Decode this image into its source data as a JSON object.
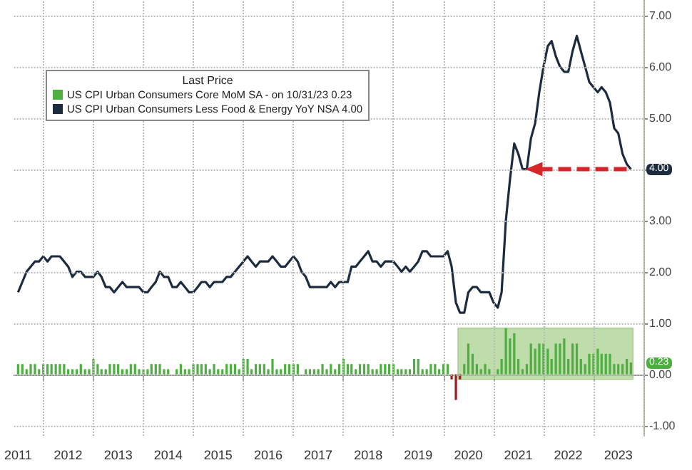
{
  "chart_data": {
    "type": "line",
    "legend_title": "Last Price",
    "legend": "top left",
    "grid": true,
    "x": [
      "2011-07",
      "2011-08",
      "2011-09",
      "2011-10",
      "2011-11",
      "2011-12",
      "2012-01",
      "2012-02",
      "2012-03",
      "2012-04",
      "2012-05",
      "2012-06",
      "2012-07",
      "2012-08",
      "2012-09",
      "2012-10",
      "2012-11",
      "2012-12",
      "2013-01",
      "2013-02",
      "2013-03",
      "2013-04",
      "2013-05",
      "2013-06",
      "2013-07",
      "2013-08",
      "2013-09",
      "2013-10",
      "2013-11",
      "2013-12",
      "2014-01",
      "2014-02",
      "2014-03",
      "2014-04",
      "2014-05",
      "2014-06",
      "2014-07",
      "2014-08",
      "2014-09",
      "2014-10",
      "2014-11",
      "2014-12",
      "2015-01",
      "2015-02",
      "2015-03",
      "2015-04",
      "2015-05",
      "2015-06",
      "2015-07",
      "2015-08",
      "2015-09",
      "2015-10",
      "2015-11",
      "2015-12",
      "2016-01",
      "2016-02",
      "2016-03",
      "2016-04",
      "2016-05",
      "2016-06",
      "2016-07",
      "2016-08",
      "2016-09",
      "2016-10",
      "2016-11",
      "2016-12",
      "2017-01",
      "2017-02",
      "2017-03",
      "2017-04",
      "2017-05",
      "2017-06",
      "2017-07",
      "2017-08",
      "2017-09",
      "2017-10",
      "2017-11",
      "2017-12",
      "2018-01",
      "2018-02",
      "2018-03",
      "2018-04",
      "2018-05",
      "2018-06",
      "2018-07",
      "2018-08",
      "2018-09",
      "2018-10",
      "2018-11",
      "2018-12",
      "2019-01",
      "2019-02",
      "2019-03",
      "2019-04",
      "2019-05",
      "2019-06",
      "2019-07",
      "2019-08",
      "2019-09",
      "2019-10",
      "2019-11",
      "2019-12",
      "2020-01",
      "2020-02",
      "2020-03",
      "2020-04",
      "2020-05",
      "2020-06",
      "2020-07",
      "2020-08",
      "2020-09",
      "2020-10",
      "2020-11",
      "2020-12",
      "2021-01",
      "2021-02",
      "2021-03",
      "2021-04",
      "2021-05",
      "2021-06",
      "2021-07",
      "2021-08",
      "2021-09",
      "2021-10",
      "2021-11",
      "2021-12",
      "2022-01",
      "2022-02",
      "2022-03",
      "2022-04",
      "2022-05",
      "2022-06",
      "2022-07",
      "2022-08",
      "2022-09",
      "2022-10",
      "2022-11",
      "2022-12",
      "2023-01",
      "2023-02",
      "2023-03",
      "2023-04",
      "2023-05",
      "2023-06",
      "2023-07",
      "2023-08",
      "2023-09",
      "2023-10"
    ],
    "series": [
      {
        "type": "bar",
        "name": "US CPI Urban Consumers Core MoM SA -  on 10/31/23 0.23",
        "color": "#4caf3f",
        "colors": [
          "#4caf3f",
          "#4caf3f",
          "#4caf3f",
          "#4caf3f",
          "#4caf3f",
          "#4caf3f",
          "#4caf3f",
          "#4caf3f",
          "#4caf3f",
          "#4caf3f",
          "#4caf3f",
          "#4caf3f",
          "#4caf3f",
          "#4caf3f",
          "#4caf3f",
          "#4caf3f",
          "#4caf3f",
          "#4caf3f",
          "#4caf3f",
          "#4caf3f",
          "#4caf3f",
          "#4caf3f",
          "#4caf3f",
          "#4caf3f",
          "#4caf3f",
          "#4caf3f",
          "#4caf3f",
          "#4caf3f",
          "#4caf3f",
          "#4caf3f",
          "#4caf3f",
          "#4caf3f",
          "#4caf3f",
          "#4caf3f",
          "#4caf3f",
          "#4caf3f",
          "#4caf3f",
          "#4caf3f",
          "#4caf3f",
          "#4caf3f",
          "#4caf3f",
          "#4caf3f",
          "#4caf3f",
          "#4caf3f",
          "#4caf3f",
          "#4caf3f",
          "#4caf3f",
          "#4caf3f",
          "#4caf3f",
          "#4caf3f",
          "#4caf3f",
          "#4caf3f",
          "#4caf3f",
          "#4caf3f",
          "#4caf3f",
          "#4caf3f",
          "#4caf3f",
          "#4caf3f",
          "#4caf3f",
          "#4caf3f",
          "#4caf3f",
          "#4caf3f",
          "#4caf3f",
          "#4caf3f",
          "#4caf3f",
          "#4caf3f",
          "#4caf3f",
          "#4caf3f",
          "#4caf3f",
          "#4caf3f",
          "#4caf3f",
          "#4caf3f",
          "#4caf3f",
          "#4caf3f",
          "#4caf3f",
          "#4caf3f",
          "#4caf3f",
          "#4caf3f",
          "#4caf3f",
          "#4caf3f",
          "#4caf3f",
          "#4caf3f",
          "#4caf3f",
          "#4caf3f",
          "#4caf3f",
          "#4caf3f",
          "#4caf3f",
          "#4caf3f",
          "#4caf3f",
          "#4caf3f",
          "#4caf3f",
          "#4caf3f",
          "#4caf3f",
          "#4caf3f",
          "#4caf3f",
          "#4caf3f",
          "#4caf3f",
          "#4caf3f",
          "#4caf3f",
          "#4caf3f",
          "#4caf3f",
          "#4caf3f",
          "#4caf3f",
          "#4caf3f",
          "#9b1b1b",
          "#9b1b1b",
          "#9b1b1b",
          "#4caf3f",
          "#4caf3f",
          "#4caf3f",
          "#4caf3f",
          "#4caf3f",
          "#4caf3f",
          "#4caf3f",
          "#4caf3f",
          "#4caf3f",
          "#4caf3f",
          "#4caf3f",
          "#4caf3f",
          "#4caf3f",
          "#4caf3f",
          "#4caf3f",
          "#4caf3f",
          "#4caf3f",
          "#4caf3f",
          "#4caf3f",
          "#4caf3f",
          "#4caf3f",
          "#4caf3f",
          "#4caf3f",
          "#4caf3f",
          "#4caf3f",
          "#4caf3f",
          "#4caf3f",
          "#4caf3f",
          "#4caf3f",
          "#4caf3f",
          "#4caf3f",
          "#4caf3f",
          "#4caf3f",
          "#4caf3f",
          "#4caf3f",
          "#4caf3f",
          "#4caf3f",
          "#4caf3f",
          "#4caf3f",
          "#4caf3f",
          "#4caf3f"
        ],
        "values": [
          0.2,
          0.2,
          0.1,
          0.2,
          0.2,
          0.1,
          0.2,
          0.2,
          0.2,
          0.2,
          0.2,
          0.2,
          0.1,
          0.1,
          0.1,
          0.2,
          0.1,
          0.1,
          0.3,
          0.2,
          0.1,
          0.1,
          0.2,
          0.2,
          0.2,
          0.1,
          0.1,
          0.2,
          0.2,
          0.1,
          0.1,
          0.1,
          0.2,
          0.2,
          0.2,
          0.1,
          0.1,
          0.0,
          0.1,
          0.2,
          0.1,
          0.1,
          0.2,
          0.2,
          0.2,
          0.2,
          0.1,
          0.2,
          0.1,
          0.1,
          0.2,
          0.2,
          0.2,
          0.1,
          0.3,
          0.3,
          0.1,
          0.2,
          0.2,
          0.2,
          0.1,
          0.3,
          0.1,
          0.1,
          0.2,
          0.2,
          0.2,
          0.2,
          0.0,
          0.1,
          0.1,
          0.1,
          0.1,
          0.2,
          0.1,
          0.2,
          0.1,
          0.2,
          0.3,
          0.2,
          0.2,
          0.1,
          0.2,
          0.2,
          0.2,
          0.1,
          0.1,
          0.2,
          0.2,
          0.2,
          0.2,
          0.1,
          0.1,
          0.1,
          0.1,
          0.3,
          0.3,
          0.1,
          0.1,
          0.2,
          0.2,
          0.1,
          0.2,
          0.2,
          -0.1,
          -0.5,
          -0.1,
          0.2,
          0.6,
          0.4,
          0.2,
          0.1,
          0.2,
          0.1,
          0.0,
          0.1,
          0.3,
          0.9,
          0.7,
          0.8,
          0.3,
          0.1,
          0.2,
          0.6,
          0.5,
          0.6,
          0.6,
          0.5,
          0.3,
          0.6,
          0.6,
          0.7,
          0.3,
          0.6,
          0.6,
          0.3,
          0.2,
          0.4,
          0.4,
          0.5,
          0.4,
          0.4,
          0.4,
          0.2,
          0.2,
          0.2,
          0.3,
          0.23
        ]
      },
      {
        "name": "US CPI Urban Consumers Less Food & Energy YoY NSA 4.00",
        "color": "#1c2b3e",
        "values": [
          1.6,
          1.8,
          2.0,
          2.1,
          2.2,
          2.2,
          2.3,
          2.2,
          2.3,
          2.3,
          2.3,
          2.2,
          2.1,
          1.9,
          2.0,
          2.0,
          1.9,
          1.9,
          1.9,
          2.0,
          1.9,
          1.7,
          1.7,
          1.6,
          1.7,
          1.8,
          1.7,
          1.7,
          1.7,
          1.7,
          1.6,
          1.6,
          1.7,
          1.8,
          2.0,
          1.9,
          1.9,
          1.7,
          1.7,
          1.8,
          1.7,
          1.6,
          1.6,
          1.7,
          1.8,
          1.8,
          1.7,
          1.8,
          1.8,
          1.8,
          1.9,
          1.9,
          2.0,
          2.1,
          2.2,
          2.3,
          2.2,
          2.1,
          2.2,
          2.2,
          2.2,
          2.3,
          2.2,
          2.1,
          2.1,
          2.2,
          2.3,
          2.2,
          2.0,
          1.9,
          1.7,
          1.7,
          1.7,
          1.7,
          1.7,
          1.8,
          1.7,
          1.8,
          1.8,
          1.8,
          2.1,
          2.1,
          2.2,
          2.3,
          2.4,
          2.2,
          2.2,
          2.1,
          2.2,
          2.2,
          2.2,
          2.1,
          2.0,
          2.1,
          2.0,
          2.1,
          2.2,
          2.4,
          2.4,
          2.3,
          2.3,
          2.3,
          2.3,
          2.4,
          2.1,
          1.4,
          1.2,
          1.2,
          1.6,
          1.7,
          1.7,
          1.6,
          1.6,
          1.6,
          1.4,
          1.3,
          1.6,
          3.0,
          3.8,
          4.5,
          4.3,
          4.0,
          4.0,
          4.6,
          4.9,
          5.5,
          6.0,
          6.4,
          6.5,
          6.2,
          6.0,
          5.9,
          5.9,
          6.3,
          6.6,
          6.3,
          6.0,
          5.7,
          5.6,
          5.5,
          5.6,
          5.5,
          5.3,
          4.8,
          4.7,
          4.3,
          4.1,
          4.0
        ]
      }
    ],
    "xlim": [
      "2011-06",
      "2024-01"
    ],
    "xticks": [
      {
        "value": "2011-07",
        "label": "2011"
      },
      {
        "value": "2012-07",
        "label": "2012"
      },
      {
        "value": "2013-07",
        "label": "2013"
      },
      {
        "value": "2014-07",
        "label": "2014"
      },
      {
        "value": "2015-07",
        "label": "2015"
      },
      {
        "value": "2016-07",
        "label": "2016"
      },
      {
        "value": "2017-07",
        "label": "2017"
      },
      {
        "value": "2018-07",
        "label": "2018"
      },
      {
        "value": "2019-07",
        "label": "2019"
      },
      {
        "value": "2020-07",
        "label": "2020"
      },
      {
        "value": "2021-07",
        "label": "2021"
      },
      {
        "value": "2022-07",
        "label": "2022"
      },
      {
        "value": "2023-07",
        "label": "2023"
      },
      {
        "value": "2012-01",
        "label": null
      },
      {
        "value": "2013-01",
        "label": null
      },
      {
        "value": "2014-01",
        "label": null
      },
      {
        "value": "2015-01",
        "label": null
      },
      {
        "value": "2016-01",
        "label": null
      },
      {
        "value": "2017-01",
        "label": null
      },
      {
        "value": "2018-01",
        "label": null
      },
      {
        "value": "2019-01",
        "label": null
      },
      {
        "value": "2020-01",
        "label": null
      },
      {
        "value": "2021-01",
        "label": null
      },
      {
        "value": "2022-01",
        "label": null
      },
      {
        "value": "2023-01",
        "label": null
      },
      {
        "value": "2024-01",
        "label": null
      }
    ],
    "ylim": [
      -1.2,
      7.3
    ],
    "yticks": [
      {
        "value": -1,
        "label": "-1.00"
      },
      {
        "value": 0,
        "label": "0.00"
      },
      {
        "value": 1,
        "label": "1.00"
      },
      {
        "value": 2,
        "label": "2.00"
      },
      {
        "value": 3,
        "label": "3.00"
      },
      {
        "value": 4,
        "label": null
      },
      {
        "value": 5,
        "label": "5.00"
      },
      {
        "value": 6,
        "label": "6.00"
      },
      {
        "value": 7,
        "label": "7.00"
      }
    ],
    "bands": [
      {
        "axis": "x",
        "from": "2020-05",
        "to": "2023-10",
        "color": "#a9d18e"
      }
    ],
    "annotations": [
      {
        "text": "0.23",
        "x": "2023-10",
        "y": 0.23
      },
      {
        "text": "4.00",
        "x": "2023-10",
        "y": 4.0
      }
    ]
  }
}
